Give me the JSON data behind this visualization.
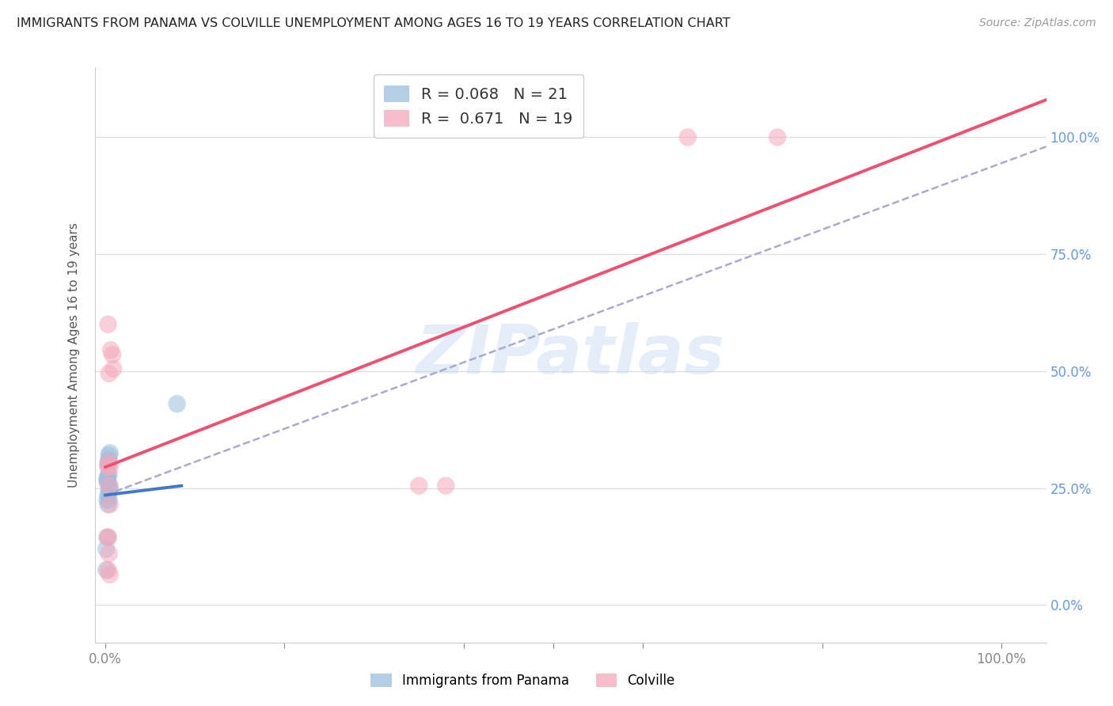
{
  "title": "IMMIGRANTS FROM PANAMA VS COLVILLE UNEMPLOYMENT AMONG AGES 16 TO 19 YEARS CORRELATION CHART",
  "source": "Source: ZipAtlas.com",
  "ylabel": "Unemployment Among Ages 16 to 19 years",
  "watermark": "ZIPatlas",
  "blue_color": "#9bbedd",
  "pink_color": "#f4a8bc",
  "blue_line_color": "#4477cc",
  "pink_line_color": "#f05070",
  "dashed_line_color": "#aaaacc",
  "tick_color": "#6699ee",
  "legend_label1": "R = 0.068   N = 21",
  "legend_label2": "R =  0.671   N = 19",
  "legend_name1": "Immigrants from Panama",
  "legend_name2": "Colville",
  "ytick_values": [
    0.0,
    0.25,
    0.5,
    0.75,
    1.0
  ],
  "ytick_labels": [
    "0.0%",
    "25.0%",
    "50.0%",
    "75.0%",
    "100.0%"
  ],
  "xlim": [
    -0.012,
    1.05
  ],
  "ylim": [
    -0.08,
    1.15
  ],
  "blue_scatter_x": [
    0.003,
    0.004,
    0.002,
    0.003,
    0.005,
    0.004,
    0.003,
    0.002,
    0.004,
    0.005,
    0.004,
    0.003,
    0.002,
    0.003,
    0.003,
    0.08,
    0.005,
    0.004,
    0.002,
    0.001,
    0.001
  ],
  "blue_scatter_y": [
    0.305,
    0.31,
    0.27,
    0.3,
    0.325,
    0.28,
    0.275,
    0.265,
    0.32,
    0.255,
    0.245,
    0.235,
    0.225,
    0.215,
    0.26,
    0.43,
    0.245,
    0.225,
    0.145,
    0.12,
    0.075
  ],
  "pink_scatter_x": [
    0.003,
    0.006,
    0.008,
    0.009,
    0.004,
    0.005,
    0.35,
    0.38,
    0.004,
    0.75,
    0.65,
    0.003,
    0.004,
    0.003,
    0.005,
    0.003,
    0.004,
    0.003,
    0.005
  ],
  "pink_scatter_y": [
    0.6,
    0.545,
    0.535,
    0.505,
    0.495,
    0.295,
    0.255,
    0.255,
    0.305,
    1.0,
    1.0,
    0.295,
    0.255,
    0.145,
    0.215,
    0.145,
    0.11,
    0.075,
    0.065
  ],
  "blue_line_x": [
    0.0,
    0.085
  ],
  "blue_line_y": [
    0.235,
    0.255
  ],
  "pink_line_x": [
    0.0,
    1.05
  ],
  "pink_line_y": [
    0.295,
    1.08
  ],
  "dashed_line_x": [
    0.0,
    1.05
  ],
  "dashed_line_y": [
    0.235,
    0.98
  ]
}
